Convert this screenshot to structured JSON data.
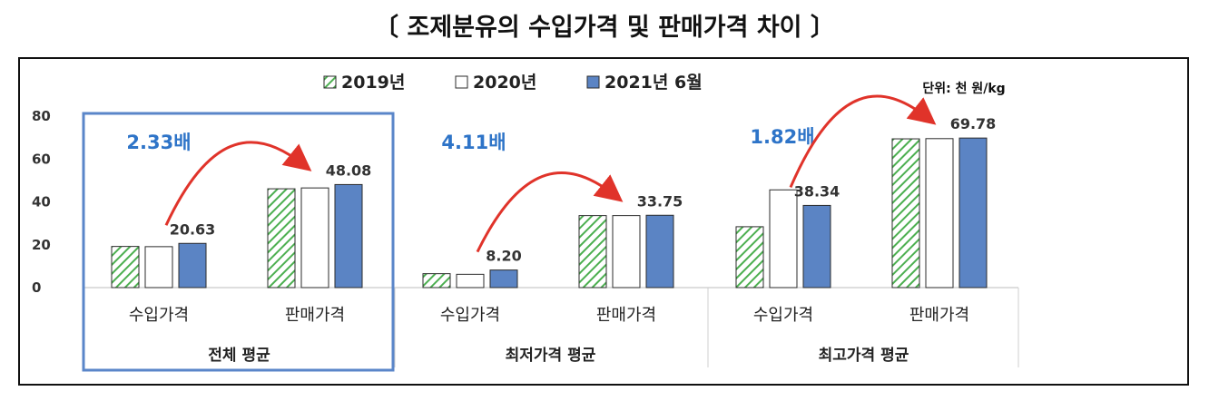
{
  "title": "〔 조제분유의 수입가격 및 판매가격 차이 〕",
  "chart_data": {
    "type": "bar",
    "unit_label": "단위: 천 원/kg",
    "ylim": [
      0,
      80
    ],
    "yticks": [
      0,
      20,
      40,
      60,
      80
    ],
    "grid": false,
    "legend_position": "top",
    "groups": [
      {
        "label": "전체 평균",
        "categories": [
          "수입가격",
          "판매가격"
        ],
        "highlighted": true,
        "ratio_label": "2.33배"
      },
      {
        "label": "최저가격 평균",
        "categories": [
          "수입가격",
          "판매가격"
        ],
        "highlighted": false,
        "ratio_label": "4.11배"
      },
      {
        "label": "최고가격 평균",
        "categories": [
          "수입가격",
          "판매가격"
        ],
        "highlighted": false,
        "ratio_label": "1.82배"
      }
    ],
    "series": [
      {
        "name": "2019년",
        "style": "hatched",
        "color": "#4caf50",
        "values": [
          19.2,
          46.1,
          6.5,
          33.6,
          28.4,
          69.4
        ]
      },
      {
        "name": "2020년",
        "style": "outline",
        "color": "#ffffff",
        "values": [
          19.1,
          46.5,
          6.2,
          33.6,
          45.6,
          69.5
        ]
      },
      {
        "name": "2021년 6월",
        "style": "solid",
        "color": "#5b84c4",
        "values": [
          20.63,
          48.08,
          8.2,
          33.75,
          38.34,
          69.78
        ],
        "data_labels": [
          "20.63",
          "48.08",
          "8.20",
          "33.75",
          "38.34",
          "69.78"
        ]
      }
    ]
  },
  "colors": {
    "ratio_text": "#2e74c8",
    "arrow": "#e0332a",
    "highlight_box": "#5a86c9",
    "bar_outline": "#2b2b2b"
  }
}
